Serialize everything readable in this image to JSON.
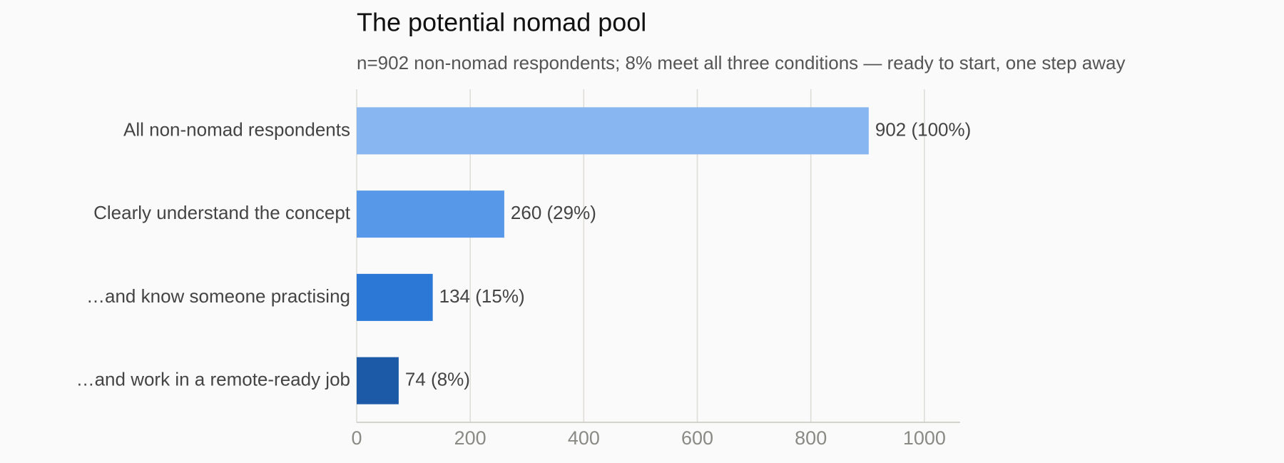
{
  "chart_data": {
    "type": "barh",
    "title": "The potential nomad pool",
    "subtitle": "n=902 non-nomad respondents; 8% meet all three conditions — ready to start, one step away",
    "categories": [
      "All non-nomad respondents",
      "Clearly understand the concept",
      "…and know someone practising",
      "…and work in a remote-ready job"
    ],
    "values": [
      902,
      260,
      134,
      74
    ],
    "value_labels": [
      "902 (100%)",
      "260 (29%)",
      "134 (15%)",
      "74 (8%)"
    ],
    "colors": [
      "#88b6f0",
      "#5799e8",
      "#2b78d6",
      "#1c5aa8"
    ],
    "xlim": [
      0,
      1063
    ],
    "xticks": [
      0,
      200,
      400,
      600,
      800,
      1000
    ],
    "grid": true
  }
}
